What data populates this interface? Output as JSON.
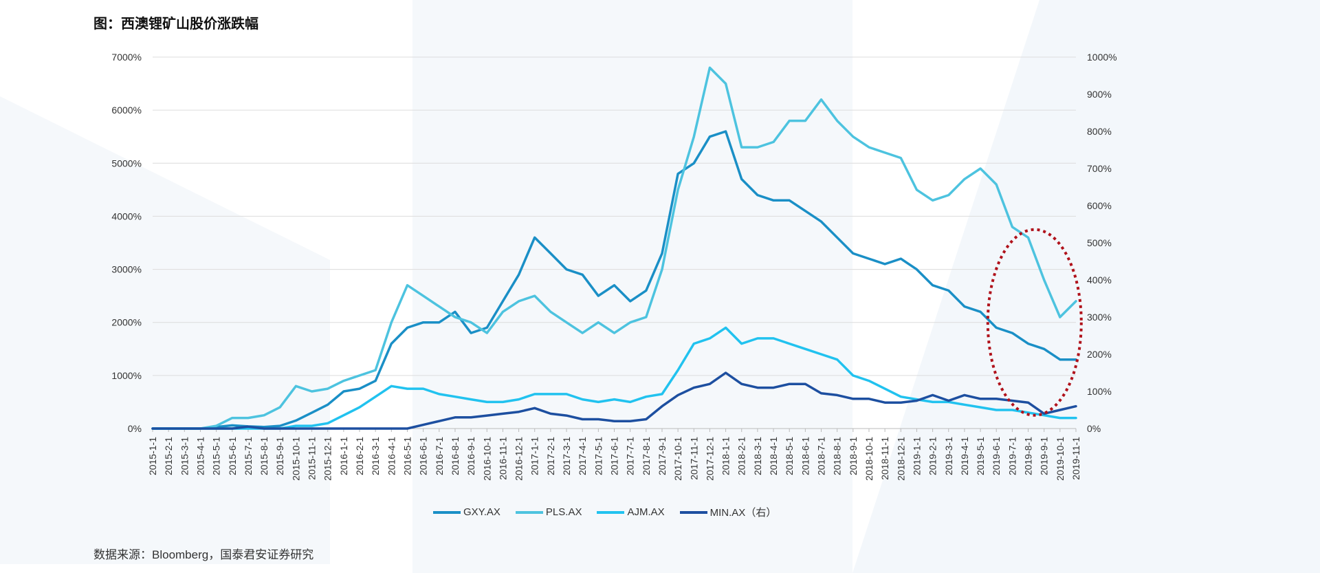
{
  "header": {
    "title": "图：西澳锂矿山股价涨跌幅"
  },
  "footer": {
    "source": "数据来源：Bloomberg，国泰君安证券研究"
  },
  "chart_data": {
    "type": "line",
    "x_labels": [
      "2015-1-1",
      "2015-2-1",
      "2015-3-1",
      "2015-4-1",
      "2015-5-1",
      "2015-6-1",
      "2015-7-1",
      "2015-8-1",
      "2015-9-1",
      "2015-10-1",
      "2015-11-1",
      "2015-12-1",
      "2016-1-1",
      "2016-2-1",
      "2016-3-1",
      "2016-4-1",
      "2016-5-1",
      "2016-6-1",
      "2016-7-1",
      "2016-8-1",
      "2016-9-1",
      "2016-10-1",
      "2016-11-1",
      "2016-12-1",
      "2017-1-1",
      "2017-2-1",
      "2017-3-1",
      "2017-4-1",
      "2017-5-1",
      "2017-6-1",
      "2017-7-1",
      "2017-8-1",
      "2017-9-1",
      "2017-10-1",
      "2017-11-1",
      "2017-12-1",
      "2018-1-1",
      "2018-2-1",
      "2018-3-1",
      "2018-4-1",
      "2018-5-1",
      "2018-6-1",
      "2018-7-1",
      "2018-8-1",
      "2018-9-1",
      "2018-10-1",
      "2018-11-1",
      "2018-12-1",
      "2019-1-1",
      "2019-2-1",
      "2019-3-1",
      "2019-4-1",
      "2019-5-1",
      "2019-6-1",
      "2019-7-1",
      "2019-8-1",
      "2019-9-1",
      "2019-10-1",
      "2019-11-1"
    ],
    "left_axis": {
      "ticks": [
        "0%",
        "1000%",
        "2000%",
        "3000%",
        "4000%",
        "5000%",
        "6000%",
        "7000%"
      ],
      "min": 0,
      "max": 7000
    },
    "right_axis": {
      "ticks": [
        "0%",
        "100%",
        "200%",
        "300%",
        "400%",
        "500%",
        "600%",
        "700%",
        "800%",
        "900%",
        "1000%"
      ],
      "min": 0,
      "max": 1000
    },
    "grid": true,
    "legend_position": "bottom",
    "series": [
      {
        "name": "GXY.AX",
        "axis": "left",
        "color": "#1a8fc6",
        "values": [
          0,
          0,
          0,
          0,
          30,
          60,
          40,
          30,
          50,
          150,
          300,
          450,
          700,
          750,
          900,
          1600,
          1900,
          2000,
          2000,
          2200,
          1800,
          1900,
          2400,
          2900,
          3600,
          3300,
          3000,
          2900,
          2500,
          2700,
          2400,
          2600,
          3300,
          4800,
          5000,
          5500,
          5600,
          4700,
          4400,
          4300,
          4300,
          4100,
          3900,
          3600,
          3300,
          3200,
          3100,
          3200,
          3000,
          2700,
          2600,
          2300,
          2200,
          1900,
          1800,
          1600,
          1500,
          1300,
          1300
        ]
      },
      {
        "name": "PLS.AX",
        "axis": "left",
        "color": "#4dc3df",
        "values": [
          0,
          0,
          0,
          0,
          50,
          200,
          200,
          250,
          400,
          800,
          700,
          750,
          900,
          1000,
          1100,
          2000,
          2700,
          2500,
          2300,
          2100,
          2000,
          1800,
          2200,
          2400,
          2500,
          2200,
          2000,
          1800,
          2000,
          1800,
          2000,
          2100,
          3000,
          4500,
          5500,
          6800,
          6500,
          5300,
          5300,
          5400,
          5800,
          5800,
          6200,
          5800,
          5500,
          5300,
          5200,
          5100,
          4500,
          4300,
          4400,
          4700,
          4900,
          4600,
          3800,
          3600,
          2800,
          2100,
          2400
        ]
      },
      {
        "name": "AJM.AX",
        "axis": "left",
        "color": "#21c2ef",
        "values": [
          0,
          0,
          0,
          0,
          0,
          0,
          0,
          0,
          0,
          50,
          50,
          100,
          250,
          400,
          600,
          800,
          750,
          750,
          650,
          600,
          550,
          500,
          500,
          550,
          650,
          650,
          650,
          550,
          500,
          550,
          500,
          600,
          650,
          1100,
          1600,
          1700,
          1900,
          1600,
          1700,
          1700,
          1600,
          1500,
          1400,
          1300,
          1000,
          900,
          750,
          600,
          550,
          500,
          500,
          450,
          400,
          350,
          350,
          300,
          250,
          200,
          200
        ]
      },
      {
        "name": "MIN.AX（右）",
        "axis": "right",
        "color": "#1d4fa0",
        "values": [
          0,
          0,
          0,
          0,
          0,
          0,
          5,
          0,
          0,
          0,
          0,
          0,
          0,
          0,
          0,
          0,
          0,
          10,
          20,
          30,
          30,
          35,
          40,
          45,
          55,
          40,
          35,
          25,
          25,
          20,
          20,
          25,
          60,
          90,
          110,
          120,
          150,
          120,
          110,
          110,
          120,
          120,
          95,
          90,
          80,
          80,
          70,
          70,
          75,
          90,
          75,
          90,
          80,
          80,
          75,
          70,
          40,
          50,
          60
        ]
      }
    ],
    "annotations": []
  }
}
